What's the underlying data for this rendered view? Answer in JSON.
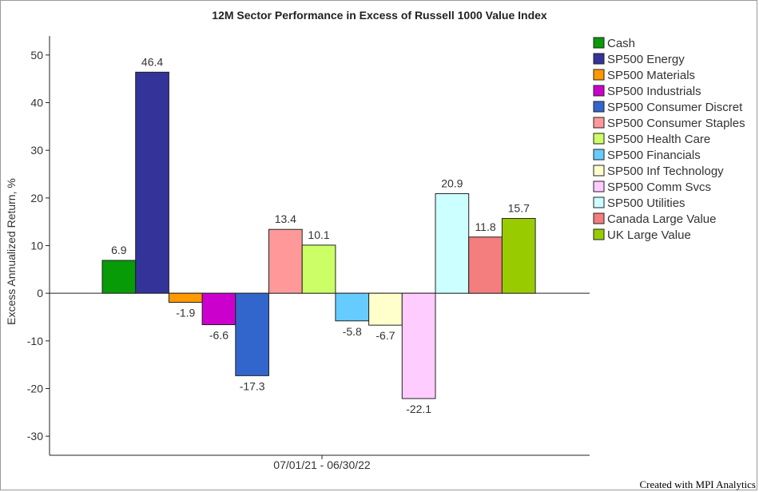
{
  "chart_data": {
    "type": "bar",
    "title": "12M Sector Performance in Excess of Russell 1000 Value Index",
    "ylabel": "Excess Annualized Return, %",
    "xlabel": "",
    "categories": [
      "07/01/21 - 06/30/22"
    ],
    "ylim": [
      -34,
      54
    ],
    "yticks": [
      -30,
      -20,
      -10,
      0,
      10,
      20,
      30,
      40,
      50
    ],
    "grid": false,
    "legend_position": "right",
    "series": [
      {
        "name": "Cash",
        "value": 6.9,
        "label": "6.9",
        "color": "#079b07"
      },
      {
        "name": "SP500 Energy",
        "value": 46.4,
        "label": "46.4",
        "color": "#333399"
      },
      {
        "name": "SP500 Materials",
        "value": -1.9,
        "label": "-1.9",
        "color": "#ff9900"
      },
      {
        "name": "SP500 Industrials",
        "value": -6.6,
        "label": "-6.6",
        "color": "#cc00cc"
      },
      {
        "name": "SP500 Consumer Discret",
        "value": -17.3,
        "label": "-17.3",
        "color": "#3366cc"
      },
      {
        "name": "SP500 Consumer Staples",
        "value": 13.4,
        "label": "13.4",
        "color": "#ff9999"
      },
      {
        "name": "SP500 Health Care",
        "value": 10.1,
        "label": "10.1",
        "color": "#ccff66"
      },
      {
        "name": "SP500 Financials",
        "value": -5.8,
        "label": "-5.8",
        "color": "#66ccff"
      },
      {
        "name": "SP500 Inf Technology",
        "value": -6.7,
        "label": "-6.7",
        "color": "#ffffcc"
      },
      {
        "name": "SP500 Comm Svcs",
        "value": -22.1,
        "label": "-22.1",
        "color": "#ffccff"
      },
      {
        "name": "SP500 Utilities",
        "value": 20.9,
        "label": "20.9",
        "color": "#ccffff"
      },
      {
        "name": "Canada Large Value",
        "value": 11.8,
        "label": "11.8",
        "color": "#f47d7d"
      },
      {
        "name": "UK Large Value",
        "value": 15.7,
        "label": "15.7",
        "color": "#99cc00"
      }
    ]
  },
  "footer": "Created with MPI Analytics"
}
